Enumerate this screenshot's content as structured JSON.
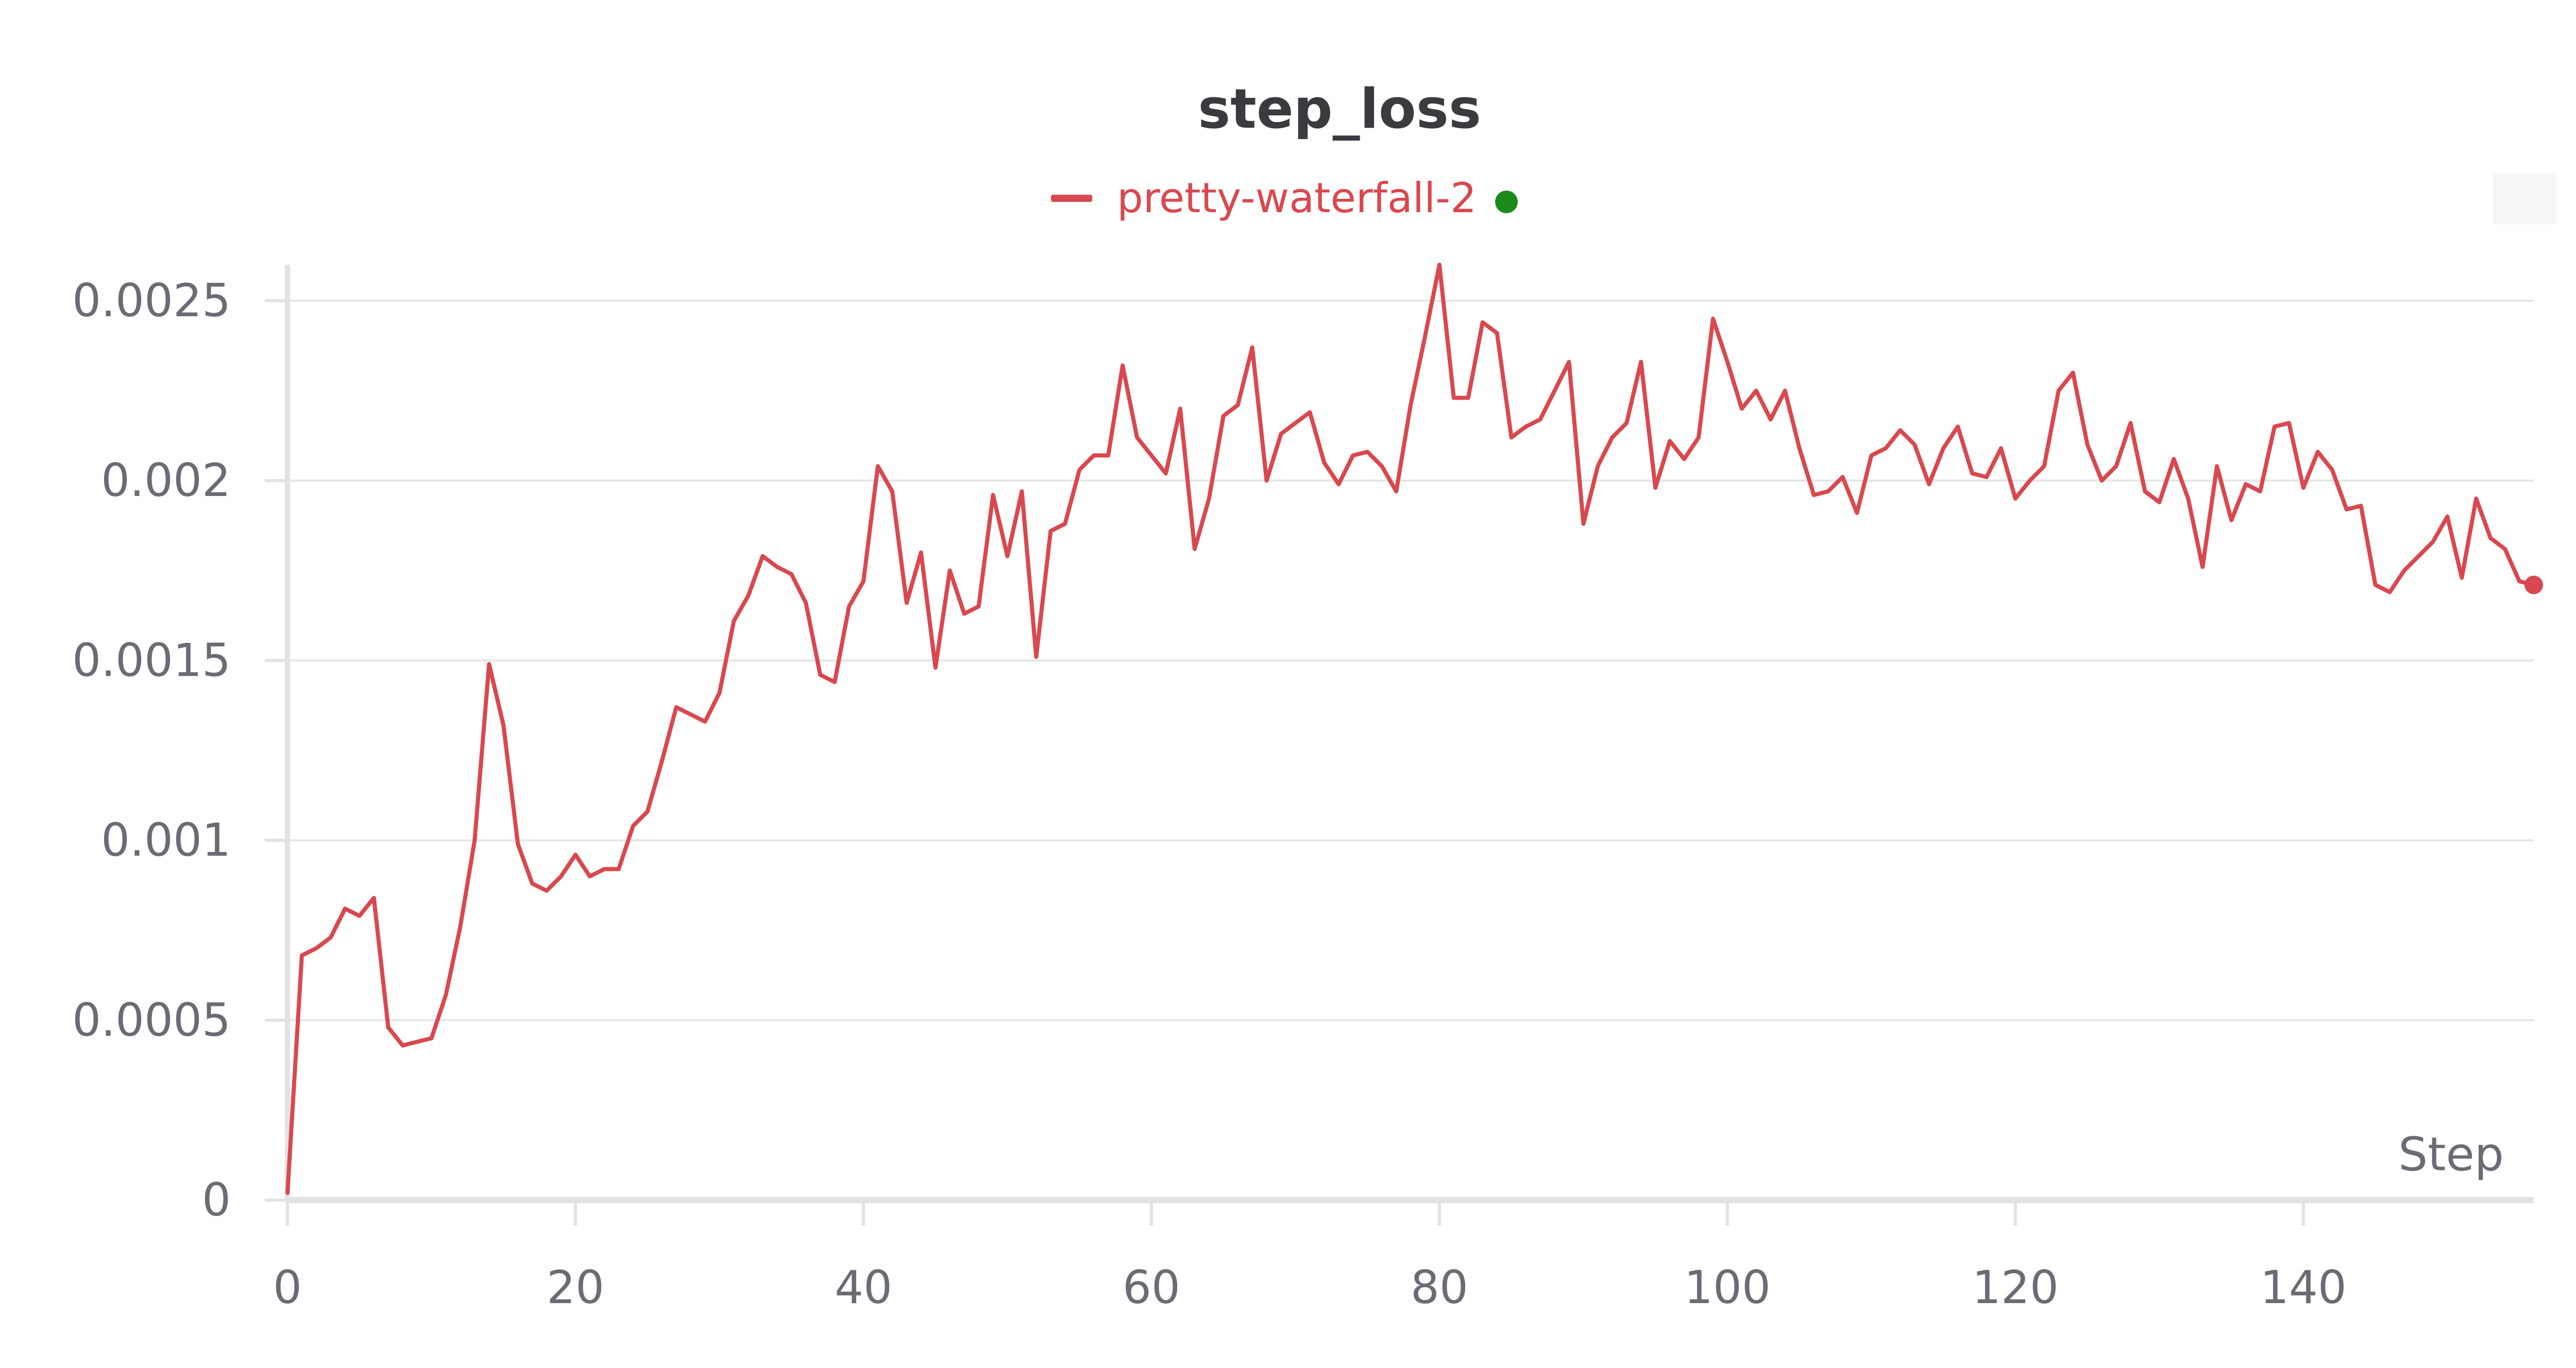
{
  "chart_data": {
    "type": "line",
    "title": "step_loss",
    "xlabel": "Step",
    "ylabel": "",
    "xlim": [
      0,
      156
    ],
    "ylim": [
      0,
      0.0026
    ],
    "x_ticks": [
      0,
      20,
      40,
      60,
      80,
      100,
      120,
      140
    ],
    "x_tick_labels": [
      "0",
      "20",
      "40",
      "60",
      "80",
      "100",
      "120",
      "140"
    ],
    "y_ticks": [
      0,
      0.0005,
      0.001,
      0.0015,
      0.002,
      0.0025
    ],
    "y_tick_labels": [
      "0",
      "0.0005",
      "0.001",
      "0.0015",
      "0.002",
      "0.0025"
    ],
    "grid": true,
    "legend_position": "top-center",
    "colors": {
      "series": "#d9484e",
      "status_dot": "#1a8a1a",
      "grid": "#e6e6e6",
      "axis": "#e2e2e2",
      "tick_text": "#6b6b76",
      "title_text": "#3a3a3f"
    },
    "series": [
      {
        "name": "pretty-waterfall-2",
        "status": "running",
        "x": [
          0,
          1,
          2,
          3,
          4,
          5,
          6,
          7,
          8,
          9,
          10,
          11,
          12,
          13,
          14,
          15,
          16,
          17,
          18,
          19,
          20,
          21,
          22,
          23,
          24,
          25,
          26,
          27,
          28,
          29,
          30,
          31,
          32,
          33,
          34,
          35,
          36,
          37,
          38,
          39,
          40,
          41,
          42,
          43,
          44,
          45,
          46,
          47,
          48,
          49,
          50,
          51,
          52,
          53,
          54,
          55,
          56,
          57,
          58,
          59,
          60,
          61,
          62,
          63,
          64,
          65,
          66,
          67,
          68,
          69,
          70,
          71,
          72,
          73,
          74,
          75,
          76,
          77,
          78,
          79,
          80,
          81,
          82,
          83,
          84,
          85,
          86,
          87,
          88,
          89,
          90,
          91,
          92,
          93,
          94,
          95,
          96,
          97,
          98,
          99,
          100,
          101,
          102,
          103,
          104,
          105,
          106,
          107,
          108,
          109,
          110,
          111,
          112,
          113,
          114,
          115,
          116,
          117,
          118,
          119,
          120,
          121,
          122,
          123,
          124,
          125,
          126,
          127,
          128,
          129,
          130,
          131,
          132,
          133,
          134,
          135,
          136,
          137,
          138,
          139,
          140,
          141,
          142,
          143,
          144,
          145,
          146,
          147,
          148,
          149,
          150,
          151,
          152,
          153,
          154,
          155,
          156
        ],
        "y": [
          2e-05,
          0.00068,
          0.0007,
          0.00073,
          0.00081,
          0.00079,
          0.00084,
          0.00048,
          0.00043,
          0.00044,
          0.00045,
          0.00057,
          0.00076,
          0.001,
          0.00149,
          0.00132,
          0.00099,
          0.00088,
          0.00086,
          0.0009,
          0.00096,
          0.0009,
          0.00092,
          0.00092,
          0.00104,
          0.00108,
          0.00122,
          0.00137,
          0.00135,
          0.00133,
          0.00141,
          0.00161,
          0.00168,
          0.00179,
          0.00176,
          0.00174,
          0.00166,
          0.00146,
          0.00144,
          0.00165,
          0.00172,
          0.00204,
          0.00197,
          0.00166,
          0.0018,
          0.00148,
          0.00175,
          0.00163,
          0.00165,
          0.00196,
          0.00179,
          0.00197,
          0.00151,
          0.00186,
          0.00188,
          0.00203,
          0.00207,
          0.00207,
          0.00232,
          0.00212,
          0.00207,
          0.00202,
          0.0022,
          0.00181,
          0.00195,
          0.00218,
          0.00221,
          0.00237,
          0.002,
          0.00213,
          0.00216,
          0.00219,
          0.00205,
          0.00199,
          0.00207,
          0.00208,
          0.00204,
          0.00197,
          0.00221,
          0.0024,
          0.0026,
          0.00223,
          0.00223,
          0.00244,
          0.00241,
          0.00212,
          0.00215,
          0.00217,
          0.00225,
          0.00233,
          0.00188,
          0.00204,
          0.00212,
          0.00216,
          0.00233,
          0.00198,
          0.00211,
          0.00206,
          0.00212,
          0.00245,
          0.00233,
          0.0022,
          0.00225,
          0.00217,
          0.00225,
          0.00209,
          0.00196,
          0.00197,
          0.00201,
          0.00191,
          0.00207,
          0.00209,
          0.00214,
          0.0021,
          0.00199,
          0.00209,
          0.00215,
          0.00202,
          0.00201,
          0.00209,
          0.00195,
          0.002,
          0.00204,
          0.00225,
          0.0023,
          0.0021,
          0.002,
          0.00204,
          0.00216,
          0.00197,
          0.00194,
          0.00206,
          0.00195,
          0.00176,
          0.00204,
          0.00189,
          0.00199,
          0.00197,
          0.00215,
          0.00216,
          0.00198,
          0.00208,
          0.00203,
          0.00192,
          0.00193,
          0.00171,
          0.00169,
          0.00175,
          0.00179,
          0.00183,
          0.0019,
          0.00173,
          0.00195,
          0.00184,
          0.00181,
          0.00172,
          0.00171
        ]
      }
    ]
  }
}
